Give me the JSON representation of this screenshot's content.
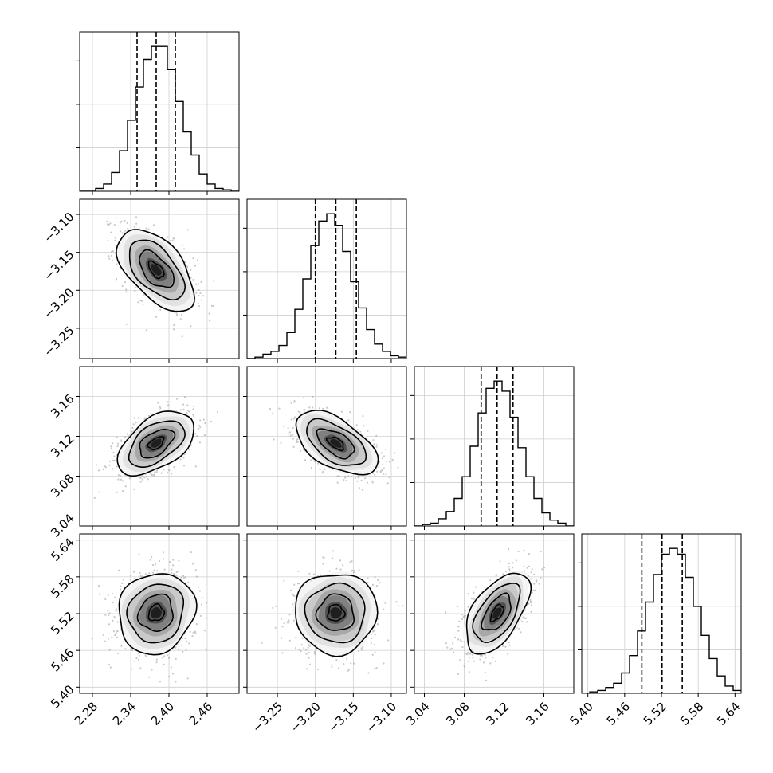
{
  "chart_data": {
    "type": "corner",
    "parameter_count": 4,
    "parameter_labels": [
      "",
      "",
      "",
      ""
    ],
    "grid": true,
    "colors": {
      "hist_line": "#000000",
      "quantile_line": "#000000",
      "scatter": "#9a9a9a",
      "density_dark": "#000000",
      "contour": "#000000"
    },
    "params": [
      {
        "name": "",
        "range": [
          2.26,
          2.51
        ],
        "ticks": [
          2.28,
          2.34,
          2.4,
          2.46
        ],
        "tick_labels": [
          "2.28",
          "2.34",
          "2.40",
          "2.46"
        ],
        "median": 2.38,
        "q16": 2.35,
        "q84": 2.41,
        "sigma": 0.03,
        "hist": [
          0.0,
          0.0,
          0.02,
          0.05,
          0.13,
          0.28,
          0.49,
          0.72,
          0.91,
          1.0,
          1.0,
          0.84,
          0.62,
          0.41,
          0.25,
          0.12,
          0.05,
          0.02,
          0.01,
          0.0
        ]
      },
      {
        "name": "",
        "range": [
          -3.29,
          -3.08
        ],
        "ticks": [
          -3.25,
          -3.2,
          -3.15,
          -3.1
        ],
        "tick_labels": [
          "−3.25",
          "−3.20",
          "−3.15",
          "−3.10"
        ],
        "median": -3.173,
        "q16": -3.2,
        "q84": -3.146,
        "sigma": 0.027,
        "hist": [
          0.0,
          0.01,
          0.03,
          0.05,
          0.09,
          0.18,
          0.34,
          0.55,
          0.78,
          0.95,
          1.0,
          0.92,
          0.74,
          0.53,
          0.35,
          0.2,
          0.1,
          0.05,
          0.02,
          0.01
        ]
      },
      {
        "name": "",
        "range": [
          3.03,
          3.19
        ],
        "ticks": [
          3.04,
          3.08,
          3.12,
          3.16
        ],
        "tick_labels": [
          "3.04",
          "3.08",
          "3.12",
          "3.16"
        ],
        "median": 3.113,
        "q16": 3.097,
        "q84": 3.129,
        "sigma": 0.016,
        "hist": [
          0.0,
          0.01,
          0.02,
          0.05,
          0.1,
          0.19,
          0.34,
          0.55,
          0.78,
          0.95,
          1.0,
          0.93,
          0.75,
          0.54,
          0.34,
          0.19,
          0.09,
          0.04,
          0.02,
          0.0
        ]
      },
      {
        "name": "",
        "range": [
          5.39,
          5.65
        ],
        "ticks": [
          5.4,
          5.46,
          5.52,
          5.58,
          5.64
        ],
        "tick_labels": [
          "5.40",
          "5.46",
          "5.52",
          "5.58",
          "5.64"
        ],
        "median": 5.521,
        "q16": 5.488,
        "q84": 5.554,
        "sigma": 0.033,
        "hist": [
          0.0,
          0.01,
          0.02,
          0.04,
          0.07,
          0.14,
          0.26,
          0.43,
          0.63,
          0.82,
          0.96,
          1.0,
          0.96,
          0.8,
          0.6,
          0.4,
          0.24,
          0.12,
          0.05,
          0.02
        ]
      }
    ],
    "correlations": {
      "1-0": -0.55,
      "2-0": 0.5,
      "2-1": -0.55,
      "3-0": 0.1,
      "3-1": 0.0,
      "3-2": 0.55
    }
  }
}
